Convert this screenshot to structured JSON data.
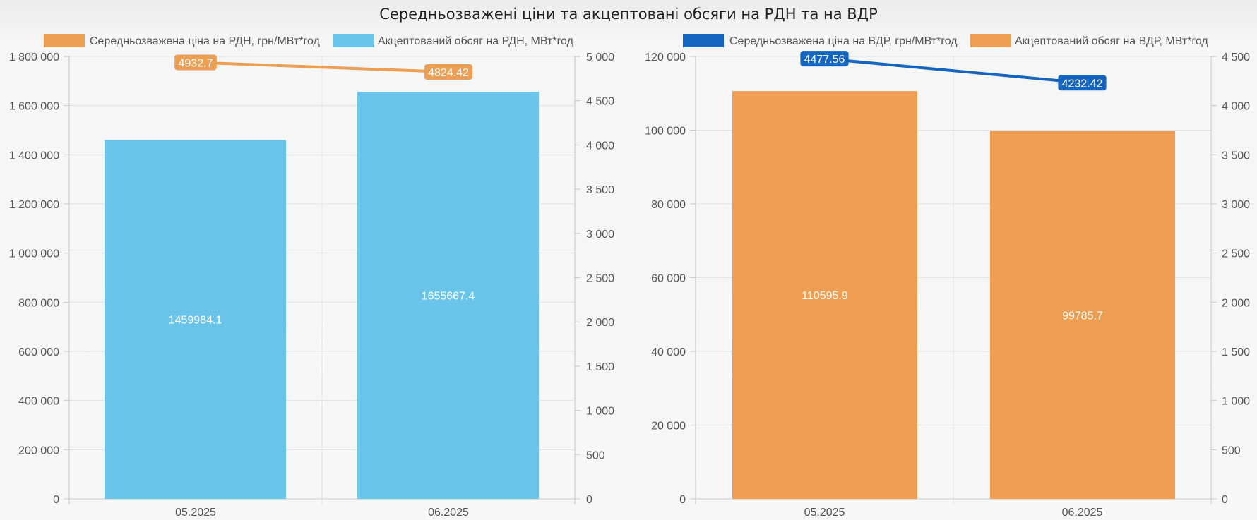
{
  "page": {
    "title": "Середньозважені ціни та акцептовані обсяги на РДН та на ВДР"
  },
  "chart_data": [
    {
      "type": "bar",
      "categories": [
        "05.2025",
        "06.2025"
      ],
      "series": [
        {
          "name": "Середньозважена ціна на РДН, грн/МВт*год",
          "type": "line",
          "axis": "right",
          "color": "#ec9e52",
          "values": [
            4932.7,
            4824.42
          ],
          "labels": [
            "4932.7",
            "4824.42"
          ]
        },
        {
          "name": "Акцептований обсяг на РДН, МВт*год",
          "type": "bar",
          "axis": "left",
          "color": "#6ac3e8",
          "values": [
            1459984.1,
            1655667.4
          ],
          "labels": [
            "1459984.1",
            "1655667.4"
          ]
        }
      ],
      "y_left": {
        "min": 0,
        "max": 1800000,
        "ticks": [
          "0",
          "200 000",
          "400 000",
          "600 000",
          "800 000",
          "1 000 000",
          "1 200 000",
          "1 400 000",
          "1 600 000",
          "1 800 000"
        ]
      },
      "y_right": {
        "min": 0,
        "max": 5000,
        "ticks": [
          "0",
          "500",
          "1 000",
          "1 500",
          "2 000",
          "2 500",
          "3 000",
          "3 500",
          "4 000",
          "4 500",
          "5 000"
        ]
      },
      "grid": true,
      "legend_position": "top"
    },
    {
      "type": "bar",
      "categories": [
        "05.2025",
        "06.2025"
      ],
      "series": [
        {
          "name": "Середньозважена ціна на ВДР, грн/МВт*год",
          "type": "line",
          "axis": "right",
          "color": "#1565c0",
          "values": [
            4477.56,
            4232.42
          ],
          "labels": [
            "4477.56",
            "4232.42"
          ]
        },
        {
          "name": "Акцептований обсяг на ВДР, МВт*год",
          "type": "bar",
          "axis": "left",
          "color": "#ee9e52",
          "values": [
            110595.9,
            99785.7
          ],
          "labels": [
            "110595.9",
            "99785.7"
          ]
        }
      ],
      "y_left": {
        "min": 0,
        "max": 120000,
        "ticks": [
          "0",
          "20 000",
          "40 000",
          "60 000",
          "80 000",
          "100 000",
          "120 000"
        ]
      },
      "y_right": {
        "min": 0,
        "max": 4500,
        "ticks": [
          "0",
          "500",
          "1 000",
          "1 500",
          "2 000",
          "2 500",
          "3 000",
          "3 500",
          "4 000",
          "4 500"
        ]
      },
      "grid": true,
      "legend_position": "top"
    }
  ]
}
